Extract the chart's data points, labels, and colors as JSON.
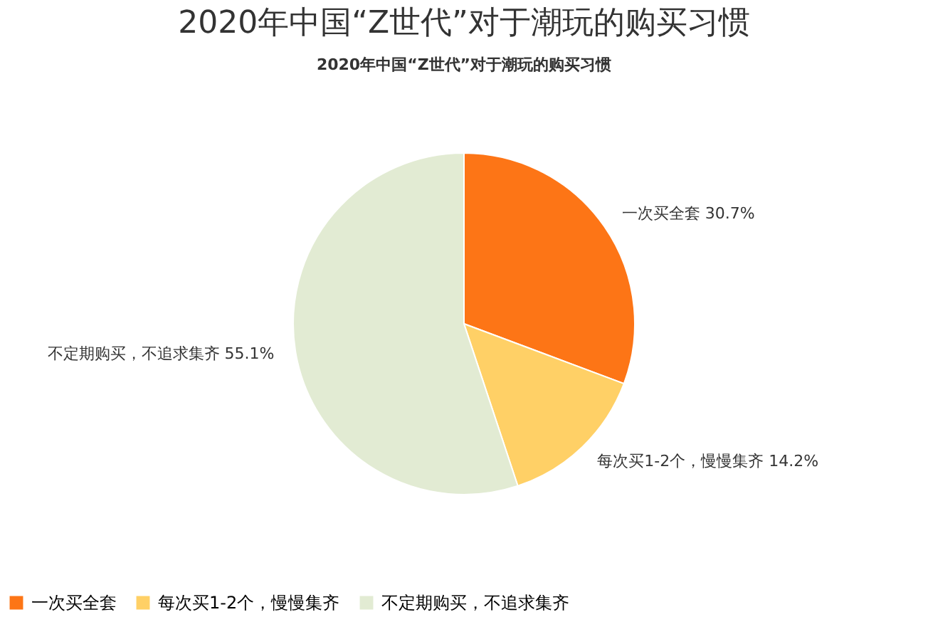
{
  "chart_data": {
    "type": "pie",
    "title": "2020年中国“Z世代”对于潮玩的购买习惯",
    "subtitle": "2020年中国“Z世代”对于潮玩的购买习惯",
    "categories": [
      "一次买全套",
      "每次买1-2个，慢慢集齐",
      "不定期购买，不追求集齐"
    ],
    "values": [
      30.7,
      14.2,
      55.1
    ],
    "colors": [
      "#fd7516",
      "#ffd066",
      "#e2ebd3"
    ],
    "value_labels": [
      "30.7%",
      "14.2%",
      "55.1%"
    ],
    "legend": "bottom"
  }
}
